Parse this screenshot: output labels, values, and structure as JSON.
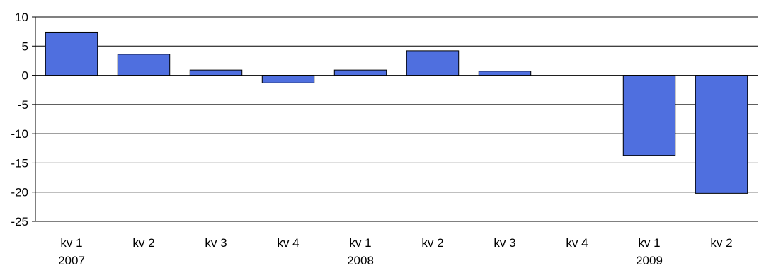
{
  "chart_data": {
    "type": "bar",
    "categories": [
      "kv 1",
      "kv 2",
      "kv 3",
      "kv 4",
      "kv 1",
      "kv 2",
      "kv 3",
      "kv 4",
      "kv 1",
      "kv 2"
    ],
    "year_labels": [
      "2007",
      "",
      "",
      "",
      "2008",
      "",
      "",
      "",
      "2009",
      ""
    ],
    "values": [
      7.4,
      3.6,
      0.9,
      -1.3,
      0.9,
      4.2,
      0.7,
      0.0,
      -13.7,
      -20.2
    ],
    "ylim": [
      -25,
      10
    ],
    "yticks": [
      10,
      5,
      0,
      -5,
      -10,
      -15,
      -20,
      -25
    ],
    "grid": true,
    "legend": "none",
    "bar_color": "#4F6FDF",
    "bar_edge_color": "#000000",
    "grid_color": "#000000"
  }
}
